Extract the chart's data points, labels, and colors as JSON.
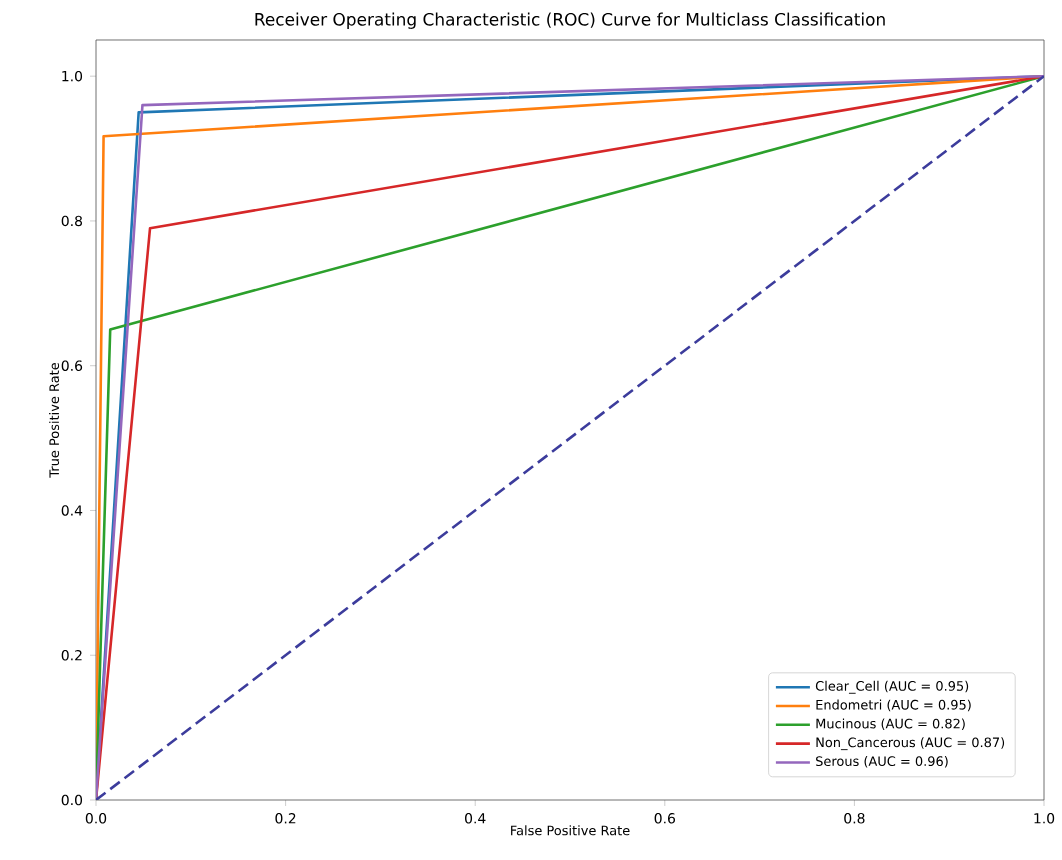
{
  "chart_data": {
    "type": "line",
    "title": "Receiver Operating Characteristic (ROC) Curve for Multiclass Classification",
    "xlabel": "False Positive Rate",
    "ylabel": "True Positive Rate",
    "xlim": [
      0,
      1
    ],
    "ylim": [
      0,
      1.05
    ],
    "xticks": [
      {
        "value": 0,
        "label": "0.0"
      },
      0.2,
      0.4,
      0.6,
      0.8,
      {
        "value": 1,
        "label": "1.0"
      }
    ],
    "yticks": [
      {
        "value": 0,
        "label": "0.0"
      },
      0.2,
      0.4,
      0.6,
      0.8,
      {
        "value": 1,
        "label": "1.0"
      }
    ],
    "grid": false,
    "legend": "bottom right",
    "series": [
      {
        "name": "Clear_Cell (AUC = 0.95)",
        "color": "#1f77b4",
        "x": [
          0,
          0.045,
          1
        ],
        "values": [
          0,
          0.95,
          1
        ]
      },
      {
        "name": "Endometri (AUC = 0.95)",
        "color": "#ff7f0e",
        "x": [
          0,
          0.008,
          1
        ],
        "values": [
          0,
          0.917,
          1
        ]
      },
      {
        "name": "Mucinous (AUC = 0.82)",
        "color": "#2ca02c",
        "x": [
          0,
          0.015,
          1
        ],
        "values": [
          0,
          0.65,
          1
        ]
      },
      {
        "name": "Non_Cancerous (AUC = 0.87)",
        "color": "#d62728",
        "x": [
          0,
          0.057,
          1
        ],
        "values": [
          0,
          0.79,
          1
        ]
      },
      {
        "name": "Serous (AUC = 0.96)",
        "color": "#9467bd",
        "x": [
          0,
          0.049,
          1
        ],
        "values": [
          0,
          0.96,
          1
        ]
      },
      {
        "color": "#3c3c9c",
        "x": [
          0,
          1
        ],
        "values": [
          0,
          1
        ],
        "line_style": "dashed"
      }
    ]
  }
}
